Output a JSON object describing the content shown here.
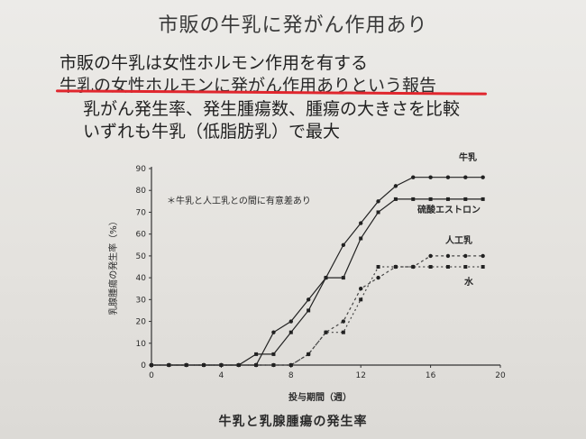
{
  "header": {
    "title": "市販の牛乳に発がん作用あり",
    "line1": "市販の牛乳は女性ホルモン作用を有する",
    "line2": "牛乳の女性ホルモンに発がん作用ありという報告",
    "line3": "乳がん発生率、発生腫瘍数、腫瘍の大きさを比較",
    "line4": "いずれも牛乳（低脂肪乳）で最大"
  },
  "colors": {
    "underline": "#e0262d"
  },
  "chart_data": {
    "type": "line",
    "title": "牛乳と乳腺腫瘍の発生率",
    "xlabel": "投与期間（週）",
    "ylabel": "乳腺腫瘍の発生率（%）",
    "xlim": [
      0,
      20
    ],
    "ylim": [
      0,
      90
    ],
    "xticks": [
      0,
      4,
      8,
      12,
      16,
      20
    ],
    "yticks": [
      0,
      10,
      20,
      30,
      40,
      50,
      60,
      70,
      80,
      90
    ],
    "annotation": "＊牛乳と人工乳との間に有意差あり",
    "grid": false,
    "series": [
      {
        "name": "牛乳",
        "x": [
          0,
          1,
          2,
          3,
          4,
          5,
          6,
          7,
          8,
          9,
          10,
          11,
          12,
          13,
          14,
          15,
          16,
          17,
          18,
          19
        ],
        "y": [
          0,
          0,
          0,
          0,
          0,
          0,
          0,
          15,
          20,
          30,
          40,
          55,
          65,
          75,
          82,
          86,
          86,
          86,
          86,
          86
        ]
      },
      {
        "name": "硫酸エストロン",
        "x": [
          0,
          1,
          2,
          3,
          4,
          5,
          6,
          7,
          8,
          9,
          10,
          11,
          12,
          13,
          14,
          15,
          16,
          17,
          18,
          19
        ],
        "y": [
          0,
          0,
          0,
          0,
          0,
          0,
          5,
          5,
          15,
          25,
          40,
          40,
          58,
          70,
          76,
          76,
          76,
          76,
          76,
          76
        ]
      },
      {
        "name": "人工乳",
        "x": [
          0,
          1,
          2,
          3,
          4,
          5,
          6,
          7,
          8,
          9,
          10,
          11,
          12,
          13,
          14,
          15,
          16,
          17,
          18,
          19
        ],
        "y": [
          0,
          0,
          0,
          0,
          0,
          0,
          0,
          0,
          0,
          5,
          15,
          20,
          35,
          40,
          45,
          45,
          50,
          50,
          50,
          50
        ]
      },
      {
        "name": "水",
        "x": [
          0,
          1,
          2,
          3,
          4,
          5,
          6,
          7,
          8,
          9,
          10,
          11,
          12,
          13,
          14,
          15,
          16,
          17,
          18,
          19
        ],
        "y": [
          0,
          0,
          0,
          0,
          0,
          0,
          0,
          0,
          0,
          5,
          15,
          15,
          30,
          45,
          45,
          45,
          45,
          45,
          45,
          45
        ]
      }
    ]
  }
}
